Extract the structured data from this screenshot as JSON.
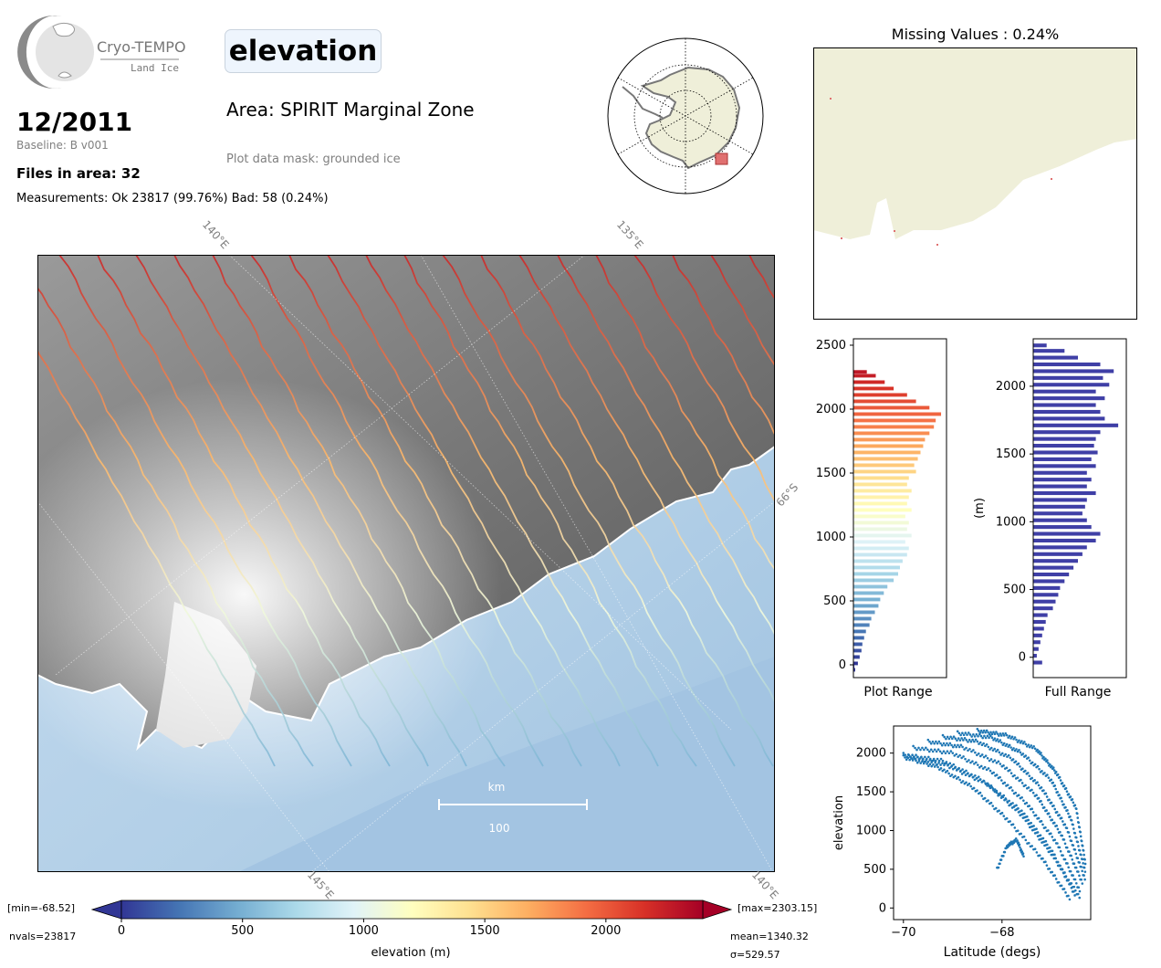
{
  "header": {
    "logo_name": "Cryo-TEMPO",
    "logo_sub": "Land Ice",
    "date": "12/2011",
    "baseline": "Baseline: B v001",
    "files": "Files in area: 32",
    "measurements": "Measurements: Ok 23817 (99.76%) Bad: 58 (0.24%)",
    "product": "elevation",
    "area": "Area: SPIRIT Marginal Zone",
    "mask": "Plot data mask: grounded ice"
  },
  "map": {
    "graticule_labels": [
      "140°E",
      "135°E",
      "66°S",
      "145°E",
      "140°E"
    ],
    "scalebar_unit": "km",
    "scalebar_value": "100"
  },
  "missing_panel": {
    "title": "Missing Values : 0.24%"
  },
  "colorbar": {
    "min_label": "[min=-68.52]",
    "max_label": "[max=2303.15]",
    "nvals": "nvals=23817",
    "mean": "mean=1340.32",
    "sigma": "σ=529.57",
    "label": "elevation (m)",
    "ticks": [
      0,
      500,
      1000,
      1500,
      2000
    ],
    "range": [
      0,
      2400
    ],
    "colormap": "RdYlBu_r"
  },
  "chart_data": [
    {
      "type": "bar",
      "orientation": "horizontal",
      "title": "",
      "xlabel": "Plot Range",
      "ylabel": "",
      "ylim": [
        -100,
        2550
      ],
      "yticks": [
        0,
        500,
        1000,
        1500,
        2000,
        2500
      ],
      "colormap": "RdYlBu_r",
      "bin_width": 25,
      "bins": [
        [
          -50,
          0.02
        ],
        [
          -25,
          0.01
        ],
        [
          0,
          0.05
        ],
        [
          50,
          0.07
        ],
        [
          100,
          0.09
        ],
        [
          150,
          0.1
        ],
        [
          200,
          0.12
        ],
        [
          250,
          0.14
        ],
        [
          300,
          0.18
        ],
        [
          350,
          0.2
        ],
        [
          400,
          0.24
        ],
        [
          450,
          0.28
        ],
        [
          500,
          0.3
        ],
        [
          550,
          0.34
        ],
        [
          600,
          0.38
        ],
        [
          650,
          0.45
        ],
        [
          700,
          0.5
        ],
        [
          750,
          0.52
        ],
        [
          800,
          0.55
        ],
        [
          850,
          0.6
        ],
        [
          900,
          0.62
        ],
        [
          950,
          0.58
        ],
        [
          1000,
          0.65
        ],
        [
          1050,
          0.6
        ],
        [
          1100,
          0.62
        ],
        [
          1150,
          0.58
        ],
        [
          1200,
          0.65
        ],
        [
          1250,
          0.6
        ],
        [
          1300,
          0.62
        ],
        [
          1350,
          0.65
        ],
        [
          1400,
          0.6
        ],
        [
          1450,
          0.62
        ],
        [
          1500,
          0.7
        ],
        [
          1550,
          0.68
        ],
        [
          1600,
          0.72
        ],
        [
          1650,
          0.75
        ],
        [
          1700,
          0.78
        ],
        [
          1750,
          0.8
        ],
        [
          1800,
          0.85
        ],
        [
          1850,
          0.9
        ],
        [
          1900,
          0.92
        ],
        [
          1950,
          0.98
        ],
        [
          2000,
          0.85
        ],
        [
          2050,
          0.7
        ],
        [
          2100,
          0.6
        ],
        [
          2150,
          0.45
        ],
        [
          2200,
          0.35
        ],
        [
          2250,
          0.25
        ],
        [
          2280,
          0.15
        ]
      ]
    },
    {
      "type": "bar",
      "orientation": "horizontal",
      "title": "",
      "xlabel": "Full Range",
      "ylabel": "(m)",
      "ylim": [
        -150,
        2350
      ],
      "yticks": [
        0,
        500,
        1000,
        1500,
        2000
      ],
      "color": "#3f3fa6",
      "bin_width": 25,
      "bins": [
        [
          -50,
          0.1
        ],
        [
          0,
          0.04
        ],
        [
          50,
          0.06
        ],
        [
          100,
          0.08
        ],
        [
          150,
          0.1
        ],
        [
          200,
          0.12
        ],
        [
          250,
          0.14
        ],
        [
          300,
          0.16
        ],
        [
          350,
          0.22
        ],
        [
          400,
          0.25
        ],
        [
          450,
          0.28
        ],
        [
          500,
          0.3
        ],
        [
          550,
          0.35
        ],
        [
          600,
          0.4
        ],
        [
          650,
          0.45
        ],
        [
          700,
          0.5
        ],
        [
          750,
          0.55
        ],
        [
          800,
          0.6
        ],
        [
          850,
          0.7
        ],
        [
          900,
          0.75
        ],
        [
          950,
          0.65
        ],
        [
          1000,
          0.6
        ],
        [
          1050,
          0.55
        ],
        [
          1100,
          0.58
        ],
        [
          1150,
          0.6
        ],
        [
          1200,
          0.7
        ],
        [
          1250,
          0.6
        ],
        [
          1300,
          0.65
        ],
        [
          1350,
          0.6
        ],
        [
          1400,
          0.7
        ],
        [
          1450,
          0.65
        ],
        [
          1500,
          0.72
        ],
        [
          1550,
          0.68
        ],
        [
          1600,
          0.7
        ],
        [
          1650,
          0.75
        ],
        [
          1700,
          0.95
        ],
        [
          1750,
          0.8
        ],
        [
          1800,
          0.75
        ],
        [
          1850,
          0.7
        ],
        [
          1900,
          0.8
        ],
        [
          1950,
          0.7
        ],
        [
          2000,
          0.85
        ],
        [
          2050,
          0.78
        ],
        [
          2100,
          0.9
        ],
        [
          2150,
          0.75
        ],
        [
          2200,
          0.5
        ],
        [
          2250,
          0.35
        ],
        [
          2290,
          0.15
        ]
      ]
    },
    {
      "type": "scatter",
      "title": "",
      "xlabel": "Latitude (degs)",
      "ylabel": "elevation",
      "xlim": [
        -70.2,
        -66.2
      ],
      "ylim": [
        -150,
        2350
      ],
      "xticks": [
        -70,
        -68
      ],
      "yticks": [
        0,
        500,
        1000,
        1500,
        2000
      ],
      "color": "#1f77b4",
      "tracks": [
        {
          "x": [
            -70.0,
            -69.2,
            -68.4,
            -67.6,
            -67.0,
            -66.5
          ],
          "y": [
            1980,
            1900,
            1650,
            1250,
            750,
            150
          ]
        },
        {
          "x": [
            -69.8,
            -69.0,
            -68.2,
            -67.5,
            -66.9,
            -66.4
          ],
          "y": [
            2070,
            2000,
            1760,
            1350,
            850,
            200
          ]
        },
        {
          "x": [
            -69.5,
            -68.8,
            -68.0,
            -67.3,
            -66.8,
            -66.35
          ],
          "y": [
            2150,
            2080,
            1850,
            1450,
            950,
            300
          ]
        },
        {
          "x": [
            -69.2,
            -68.5,
            -67.8,
            -67.2,
            -66.7,
            -66.3
          ],
          "y": [
            2210,
            2150,
            1930,
            1550,
            1050,
            350
          ]
        },
        {
          "x": [
            -68.9,
            -68.2,
            -67.6,
            -67.0,
            -66.6,
            -66.3
          ],
          "y": [
            2260,
            2200,
            2000,
            1650,
            1150,
            450
          ]
        },
        {
          "x": [
            -68.5,
            -67.9,
            -67.3,
            -66.9,
            -66.5,
            -66.3
          ],
          "y": [
            2290,
            2230,
            2050,
            1750,
            1300,
            550
          ]
        },
        {
          "x": [
            -70.0,
            -69.3,
            -68.6,
            -67.9,
            -67.2,
            -66.6
          ],
          "y": [
            1950,
            1820,
            1560,
            1150,
            650,
            100
          ]
        },
        {
          "x": [
            -69.9,
            -69.1,
            -68.3,
            -67.6,
            -67.0,
            -66.4
          ],
          "y": [
            1960,
            1840,
            1600,
            1200,
            700,
            120
          ]
        }
      ],
      "bump": {
        "x": [
          -68.1,
          -67.9,
          -67.7,
          -67.55
        ],
        "y": [
          500,
          800,
          880,
          650
        ]
      }
    }
  ]
}
